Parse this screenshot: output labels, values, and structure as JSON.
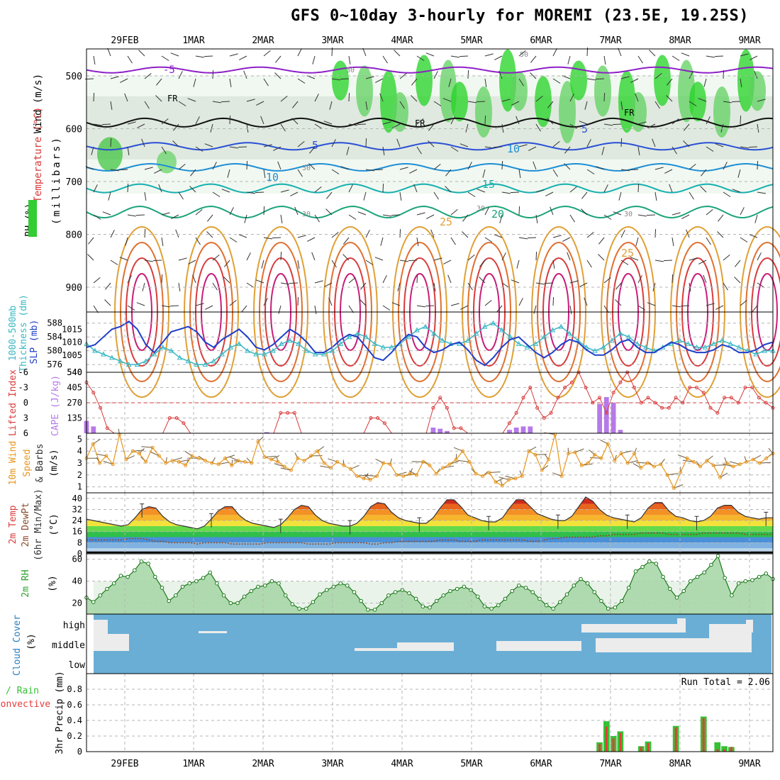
{
  "header": {
    "title": "GFS 0~10day 3-hourly for MOREMI (23.5E, 19.25S)"
  },
  "dates": [
    "29FEB",
    "1MAR",
    "2MAR",
    "3MAR",
    "4MAR",
    "5MAR",
    "6MAR",
    "7MAR",
    "8MAR",
    "9MAR"
  ],
  "colors": {
    "grid": "#b4b4b4",
    "slp": "#1f3fc9",
    "thickness": "#39b8c4",
    "cape": "#b779e8",
    "li": "#d83b3b",
    "wind10m": "#e6961e",
    "barb": "#6e5b3a",
    "rh2m": "#2fa12f",
    "cloud": "#6aaed6",
    "cloud_fill": "#ececec",
    "rain": "#33c233",
    "conv": "#e83b3b"
  },
  "panels": {
    "upper": {
      "ylabels": [
        "Wind (m/s)",
        "Temperature (°C)",
        "RH (%)"
      ],
      "ylabel_units": "(millibars)",
      "yticks": [
        "500",
        "600",
        "700",
        "800",
        "900"
      ],
      "contour_labels": {
        "minus5": "-5",
        "fr": "FR",
        "t5": "5",
        "t10": "10",
        "t15": "15",
        "t20": "20",
        "t25": "25",
        "rh30": "30",
        "rh50": "50"
      }
    },
    "slp": {
      "ylabels": [
        "1000-500mb",
        "Thickness (dm)",
        "SLP (mb)"
      ],
      "yticks_left": [
        "588",
        "584",
        "580",
        "576"
      ],
      "yticks_right": [
        "1015",
        "1010",
        "1005"
      ]
    },
    "cape": {
      "ylabels": [
        "Lifted Index",
        "CAPE (J/kg)"
      ],
      "yticks_left": [
        "-6",
        "-3",
        "0",
        "3",
        "6"
      ],
      "yticks_right": [
        "540",
        "405",
        "270",
        "135"
      ]
    },
    "wind10m": {
      "ylabels": [
        "10m Wind",
        "Speed",
        "& Barbs"
      ],
      "units": "(m/s)",
      "yticks": [
        "5",
        "4",
        "3",
        "2",
        "1"
      ]
    },
    "temp2m": {
      "ylabels": [
        "2m Temp",
        "2m DewPt",
        "(6hr Min/Max)"
      ],
      "units": "(°C)",
      "yticks": [
        "40",
        "32",
        "24",
        "16",
        "8",
        "0"
      ]
    },
    "rh2m": {
      "ylabels": [
        "2m RH"
      ],
      "units": "(%)",
      "yticks": [
        "60",
        "40",
        "20"
      ]
    },
    "cloud": {
      "ylabels": [
        "Cloud Cover"
      ],
      "units": "(%)",
      "levels": [
        "high",
        "middle",
        "low"
      ]
    },
    "precip": {
      "ylabels": [
        "Total / Rain",
        "Convective",
        "3hr Precip (mm)"
      ],
      "yticks": [
        "0.8",
        "0.6",
        "0.4",
        "0.2",
        "0"
      ],
      "run_total": "Run Total = 2.06"
    }
  },
  "chart_data": [
    {
      "type": "line",
      "title": "1000-500mb Thickness (dm) / SLP (mb)",
      "series": [
        {
          "name": "SLP (mb)",
          "axis": "right",
          "ylim": [
            1000,
            1020
          ],
          "values": [
            1008,
            1009,
            1012,
            1015,
            1016,
            1018,
            1015,
            1009,
            1006,
            1010,
            1014,
            1015,
            1016,
            1014,
            1010,
            1008,
            1011,
            1013,
            1015,
            1012,
            1008,
            1007,
            1009,
            1012,
            1015,
            1013,
            1010,
            1006,
            1006,
            1008,
            1011,
            1013,
            1012,
            1008,
            1004,
            1003,
            1006,
            1010,
            1013,
            1012,
            1008,
            1006,
            1007,
            1009,
            1010,
            1007,
            1003,
            1001,
            1004,
            1008,
            1011,
            1012,
            1009,
            1006,
            1004,
            1006,
            1009,
            1011,
            1010,
            1007,
            1005,
            1005,
            1007,
            1010,
            1011,
            1008,
            1006,
            1006,
            1008,
            1010,
            1009,
            1007,
            1006,
            1006,
            1007,
            1009,
            1008,
            1006,
            1006,
            1007,
            1009,
            1010
          ]
        },
        {
          "name": "1000-500mb Thickness (dm)",
          "axis": "left",
          "ylim": [
            575,
            590
          ],
          "values": [
            582,
            580,
            579,
            578,
            577,
            576,
            576,
            577,
            579,
            581,
            580,
            578,
            577,
            576,
            576,
            577,
            579,
            581,
            582,
            580,
            579,
            579,
            580,
            582,
            583,
            582,
            580,
            579,
            579,
            580,
            582,
            584,
            585,
            584,
            582,
            581,
            581,
            582,
            584,
            586,
            587,
            585,
            583,
            582,
            582,
            583,
            585,
            587,
            588,
            586,
            584,
            582,
            581,
            582,
            584,
            586,
            587,
            585,
            583,
            581,
            580,
            581,
            583,
            585,
            584,
            582,
            581,
            580,
            581,
            582,
            583,
            582,
            581,
            581,
            582,
            583,
            582,
            581,
            580,
            579,
            580,
            580
          ]
        }
      ]
    },
    {
      "type": "bar",
      "title": "Lifted Index / CAPE (J/kg)",
      "series": [
        {
          "name": "CAPE (J/kg)",
          "ylim": [
            0,
            540
          ],
          "values": [
            110,
            60,
            0,
            0,
            0,
            0,
            0,
            0,
            0,
            0,
            0,
            0,
            0,
            0,
            0,
            0,
            0,
            0,
            0,
            0,
            0,
            0,
            0,
            0,
            0,
            0,
            10,
            0,
            0,
            0,
            0,
            0,
            0,
            0,
            0,
            0,
            0,
            0,
            0,
            0,
            0,
            0,
            0,
            0,
            0,
            0,
            0,
            0,
            0,
            0,
            50,
            40,
            20,
            0,
            0,
            0,
            0,
            0,
            0,
            0,
            0,
            30,
            50,
            60,
            60,
            0,
            0,
            0,
            0,
            0,
            0,
            0,
            0,
            0,
            260,
            320,
            270,
            30,
            0,
            0,
            0,
            0,
            0,
            0,
            0,
            0,
            0,
            0,
            0,
            0,
            0,
            0,
            0,
            0,
            0,
            0,
            0,
            0,
            0,
            0
          ]
        },
        {
          "name": "Lifted Index",
          "ylim": [
            -6,
            6
          ],
          "values": [
            -4,
            -2,
            1,
            5,
            6,
            6,
            6,
            6,
            6,
            6,
            6,
            6,
            3,
            3,
            4,
            6,
            6,
            6,
            6,
            6,
            6,
            6,
            6,
            6,
            6,
            6,
            6,
            6,
            2,
            2,
            2,
            6,
            6,
            6,
            6,
            6,
            6,
            6,
            6,
            6,
            6,
            3,
            3,
            4,
            6,
            6,
            6,
            6,
            6,
            6,
            1,
            -1,
            1,
            5,
            5,
            6,
            6,
            6,
            6,
            6,
            6,
            4,
            2,
            -1,
            -3,
            1,
            3,
            2,
            -1,
            -3,
            -4,
            -6,
            -3,
            0,
            -1,
            2,
            -2,
            -4,
            -6,
            -3,
            0,
            -1,
            0,
            1,
            1,
            -1,
            0,
            -3,
            -3,
            -2,
            1,
            2,
            -1,
            -1,
            0,
            -3,
            -3,
            -1,
            0,
            1
          ]
        }
      ]
    },
    {
      "type": "line",
      "title": "10m Wind Speed & Barbs (m/s)",
      "ylim": [
        0.5,
        5.5
      ],
      "values": [
        3.4,
        4.6,
        3.0,
        3.6,
        2.9,
        5.4,
        3.3,
        4.0,
        3.8,
        3.1,
        4.3,
        3.6,
        3.0,
        3.2,
        3.1,
        2.8,
        3.6,
        3.4,
        3.2,
        3.0,
        2.9,
        3.4,
        2.8,
        3.2,
        3.1,
        3.0,
        4.8,
        3.5,
        3.3,
        3.1,
        2.7,
        2.4,
        3.4,
        3.2,
        3.6,
        4.0,
        3.0,
        2.6,
        3.1,
        2.8,
        2.5,
        1.9,
        1.7,
        1.6,
        1.9,
        3.0,
        2.9,
        2.0,
        1.9,
        2.1,
        2.0,
        3.1,
        2.8,
        2.1,
        2.6,
        2.9,
        3.3,
        4.0,
        3.1,
        2.1,
        1.9,
        2.2,
        1.4,
        1.1,
        1.6,
        1.7,
        1.9,
        4.0,
        3.7,
        2.4,
        3.3,
        5.4,
        1.9,
        3.8,
        3.9,
        2.8,
        3.0,
        3.7,
        3.4,
        4.6,
        3.2,
        3.8,
        3.0,
        3.8,
        2.6,
        3.0,
        2.7,
        2.9,
        2.0,
        0.9,
        2.2,
        3.4,
        3.1,
        2.7,
        3.2,
        2.8,
        1.8,
        3.0,
        2.7,
        2.9,
        3.1,
        3.3,
        3.0,
        3.4,
        3.8
      ]
    },
    {
      "type": "area",
      "title": "2m Temp / 2m DewPt (6hr Min/Max)",
      "ylim": [
        0,
        44
      ],
      "series": [
        {
          "name": "2m Temp",
          "values": [
            25,
            24,
            23,
            22,
            21,
            20,
            21,
            26,
            32,
            34,
            33,
            27,
            23,
            21,
            20,
            19,
            18,
            20,
            25,
            31,
            34,
            34,
            28,
            24,
            22,
            21,
            20,
            19,
            21,
            26,
            32,
            35,
            34,
            28,
            24,
            22,
            21,
            20,
            20,
            22,
            27,
            34,
            37,
            36,
            30,
            26,
            24,
            23,
            22,
            22,
            26,
            33,
            39,
            39,
            34,
            28,
            26,
            24,
            23,
            23,
            26,
            33,
            39,
            39,
            34,
            29,
            27,
            25,
            24,
            24,
            27,
            34,
            41,
            38,
            32,
            28,
            26,
            25,
            24,
            23,
            26,
            33,
            37,
            37,
            31,
            27,
            26,
            24,
            23,
            24,
            27,
            33,
            35,
            35,
            30,
            27,
            26,
            25,
            26,
            26
          ]
        },
        {
          "name": "2m DewPt",
          "values": [
            10,
            10,
            10,
            10,
            10,
            10,
            11,
            11,
            11,
            10,
            9,
            9,
            8,
            8,
            8,
            8,
            7,
            8,
            8,
            8,
            8,
            7,
            7,
            7,
            7,
            7,
            8,
            8,
            8,
            8,
            8,
            8,
            7,
            7,
            7,
            7,
            8,
            8,
            8,
            8,
            8,
            7,
            7,
            8,
            8,
            9,
            9,
            9,
            9,
            9,
            9,
            10,
            10,
            10,
            9,
            9,
            9,
            10,
            10,
            10,
            10,
            10,
            10,
            10,
            9,
            9,
            10,
            11,
            11,
            12,
            12,
            12,
            12,
            12,
            13,
            13,
            14,
            14,
            14,
            14,
            15,
            15,
            15,
            15,
            14,
            14,
            14,
            14,
            14,
            15,
            15,
            15,
            15,
            15,
            15,
            14,
            14,
            14,
            14,
            14
          ]
        }
      ]
    },
    {
      "type": "area",
      "title": "2m RH (%)",
      "ylim": [
        10,
        65
      ],
      "values": [
        25,
        21,
        27,
        33,
        38,
        45,
        44,
        50,
        58,
        56,
        44,
        34,
        22,
        27,
        35,
        38,
        40,
        43,
        48,
        38,
        27,
        20,
        20,
        26,
        31,
        35,
        36,
        40,
        38,
        27,
        19,
        15,
        15,
        21,
        28,
        32,
        35,
        38,
        36,
        30,
        22,
        14,
        14,
        20,
        27,
        30,
        32,
        29,
        24,
        17,
        16,
        22,
        27,
        31,
        33,
        35,
        32,
        26,
        17,
        15,
        18,
        24,
        31,
        36,
        34,
        30,
        24,
        18,
        15,
        21,
        28,
        36,
        42,
        38,
        30,
        22,
        15,
        16,
        22,
        34,
        49,
        53,
        58,
        56,
        44,
        33,
        25,
        31,
        40,
        44,
        48,
        55,
        63,
        43,
        27,
        38,
        40,
        41,
        44,
        47,
        42
      ]
    },
    {
      "type": "bar",
      "title": "3hr Precip (mm)",
      "ylim": [
        0,
        1.0
      ],
      "annotation": "Run Total = 2.06",
      "series": [
        {
          "name": "Total / Rain",
          "values": [
            0,
            0,
            0,
            0,
            0,
            0,
            0,
            0,
            0,
            0,
            0,
            0,
            0,
            0,
            0,
            0,
            0,
            0,
            0,
            0,
            0,
            0,
            0,
            0,
            0,
            0,
            0,
            0,
            0,
            0,
            0,
            0,
            0,
            0,
            0,
            0,
            0,
            0,
            0,
            0,
            0,
            0,
            0,
            0,
            0,
            0,
            0,
            0,
            0,
            0,
            0,
            0,
            0,
            0,
            0,
            0,
            0,
            0,
            0,
            0,
            0,
            0,
            0,
            0,
            0,
            0,
            0,
            0,
            0,
            0,
            0,
            0,
            0,
            0,
            0.12,
            0.39,
            0.2,
            0.26,
            0,
            0,
            0.07,
            0.13,
            0,
            0,
            0,
            0.33,
            0,
            0,
            0,
            0.45,
            0,
            0.12,
            0.07,
            0.06,
            0,
            0,
            0,
            0,
            0,
            0
          ]
        },
        {
          "name": "Convective",
          "values": [
            0,
            0,
            0,
            0,
            0,
            0,
            0,
            0,
            0,
            0,
            0,
            0,
            0,
            0,
            0,
            0,
            0,
            0,
            0,
            0,
            0,
            0,
            0,
            0,
            0,
            0,
            0,
            0,
            0,
            0,
            0,
            0,
            0,
            0,
            0,
            0,
            0,
            0,
            0,
            0,
            0,
            0,
            0,
            0,
            0,
            0,
            0,
            0,
            0,
            0,
            0,
            0,
            0,
            0,
            0,
            0,
            0,
            0,
            0,
            0,
            0,
            0,
            0,
            0,
            0,
            0,
            0,
            0,
            0,
            0,
            0,
            0,
            0,
            0,
            0.1,
            0.32,
            0.17,
            0.24,
            0,
            0,
            0.06,
            0.11,
            0,
            0,
            0,
            0.31,
            0,
            0,
            0,
            0.43,
            0,
            0.03,
            0.03,
            0.06,
            0,
            0,
            0,
            0,
            0,
            0
          ]
        }
      ]
    }
  ]
}
